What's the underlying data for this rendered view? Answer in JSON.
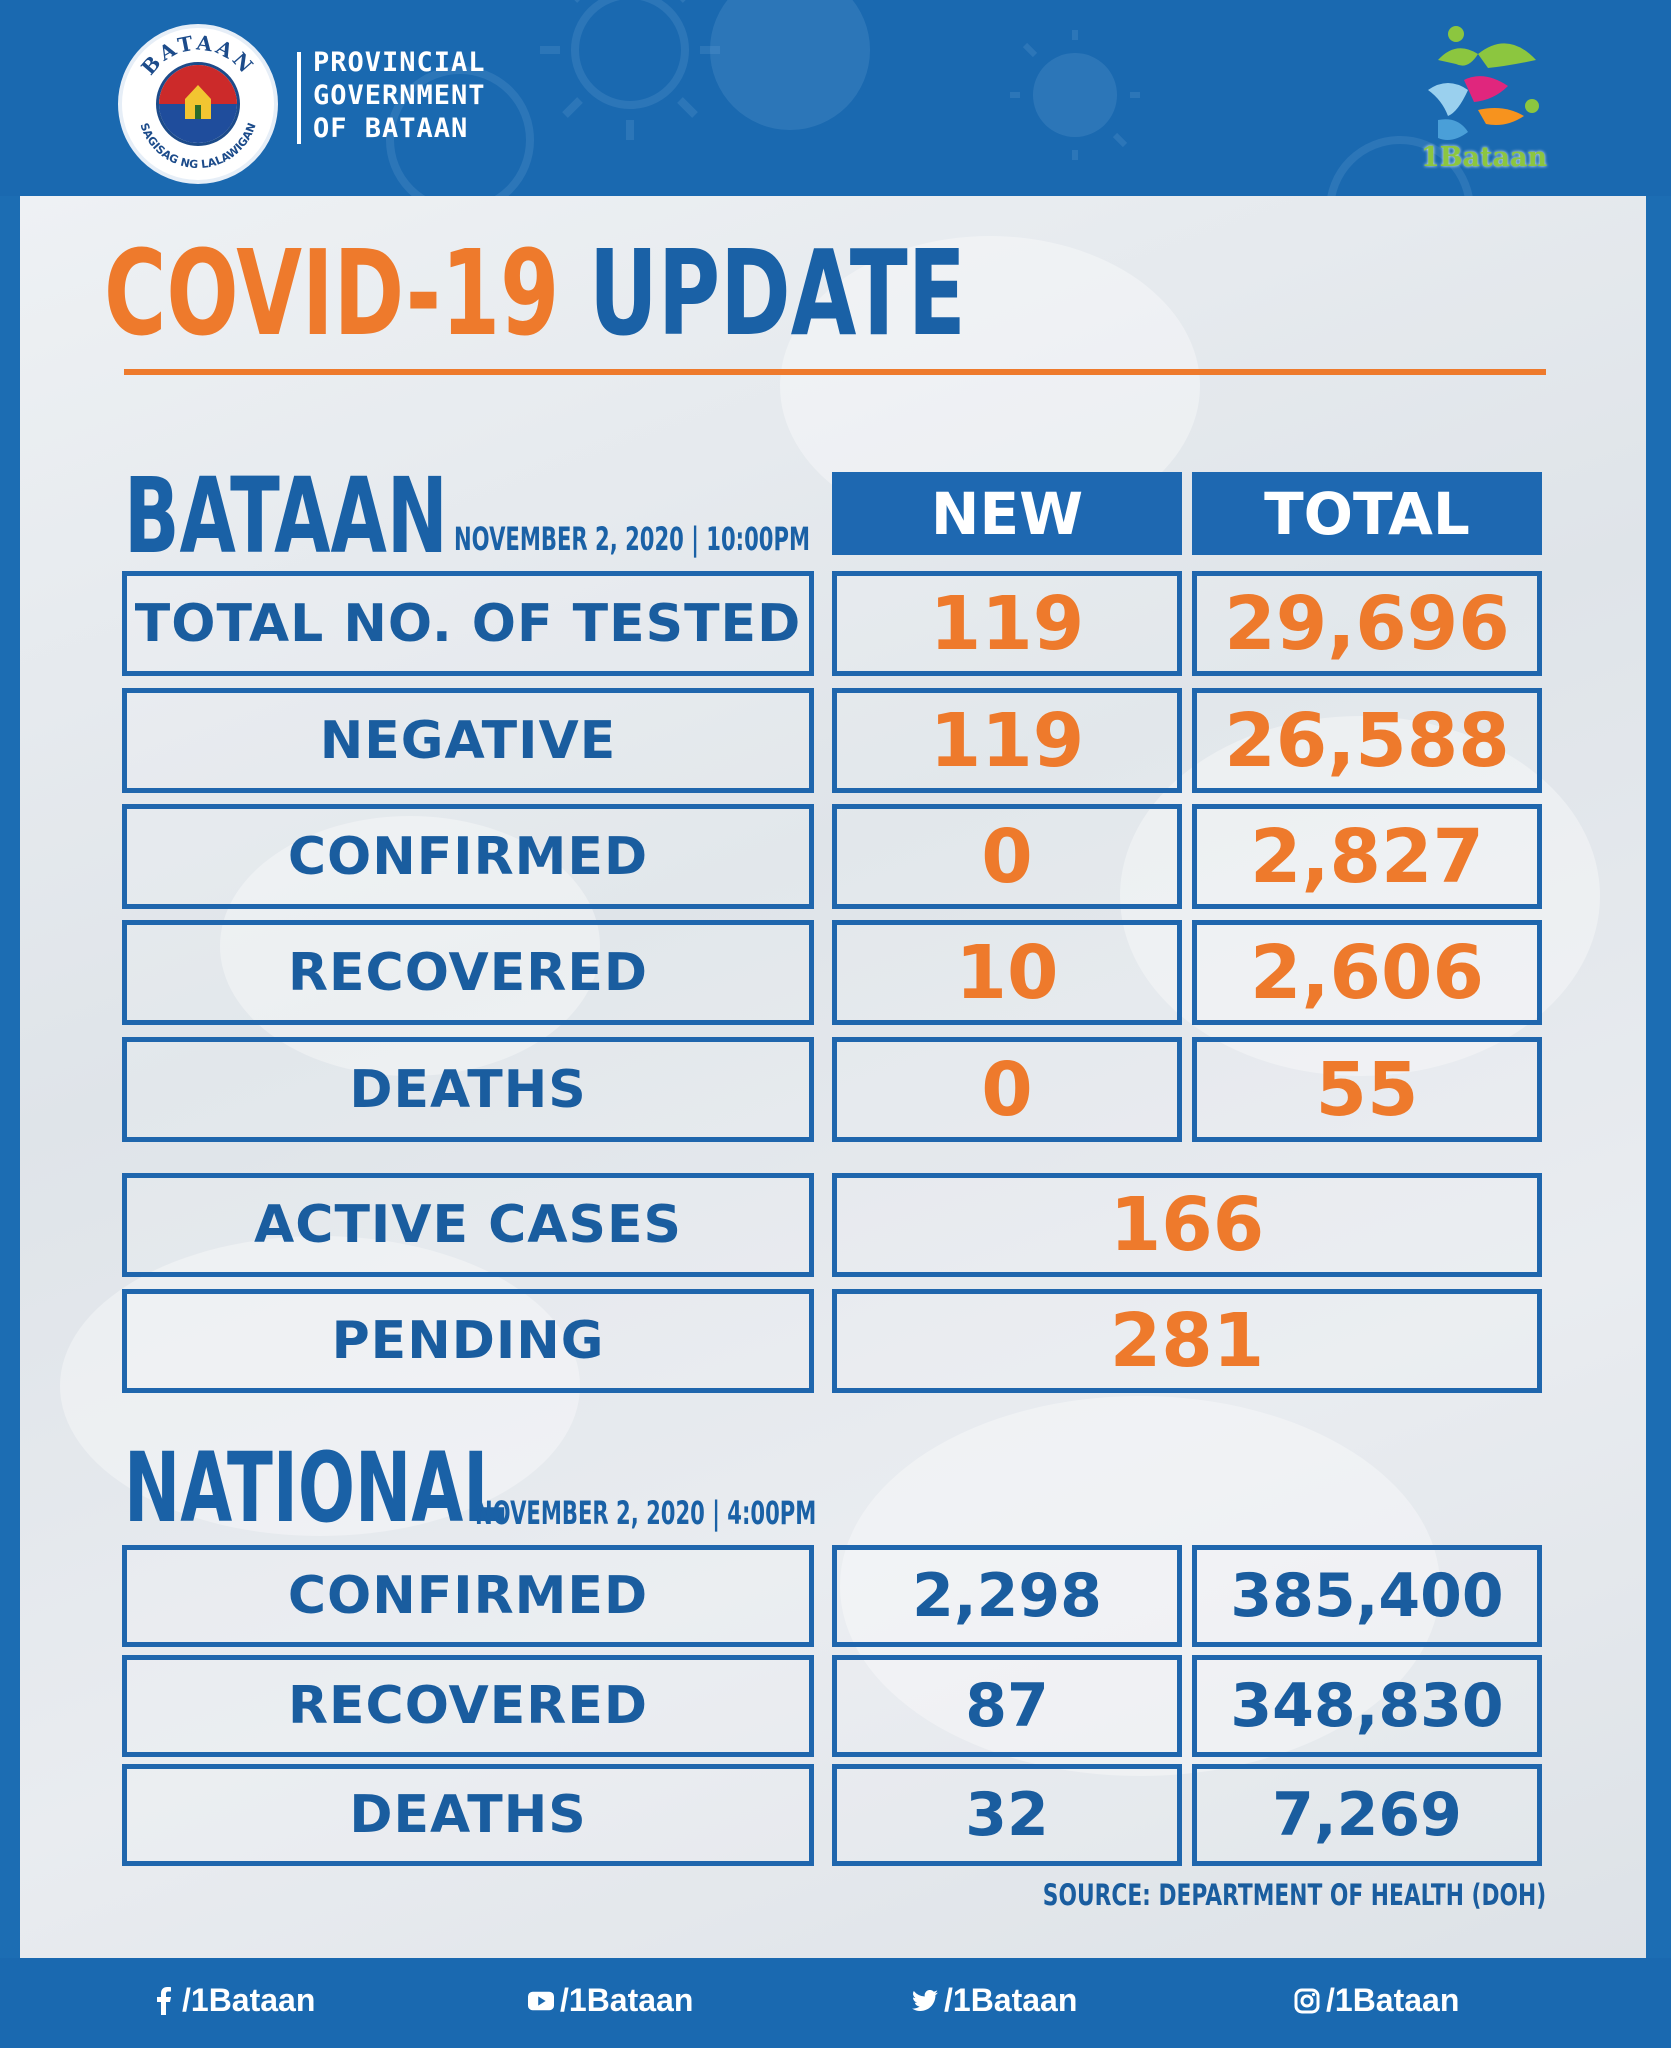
{
  "header": {
    "org_lines": [
      "PROVINCIAL",
      "GOVERNMENT",
      "OF BATAAN"
    ],
    "seal_ring_top": "BATAAN",
    "seal_ring_bottom": "SAGISAG NG LALAWIGAN",
    "brand_logo_text": "1Bataan"
  },
  "title": {
    "part1": "COVID-19",
    "part2": "UPDATE"
  },
  "bataan": {
    "heading": "BATAAN",
    "date": "NOVEMBER 2, 2020 | 10:00PM",
    "col_new": "NEW",
    "col_total": "TOTAL",
    "rows": [
      {
        "label": "TOTAL NO. OF TESTED",
        "new": "119",
        "total": "29,696"
      },
      {
        "label": "NEGATIVE",
        "new": "119",
        "total": "26,588"
      },
      {
        "label": "CONFIRMED",
        "new": "0",
        "total": "2,827"
      },
      {
        "label": "RECOVERED",
        "new": "10",
        "total": "2,606"
      },
      {
        "label": "DEATHS",
        "new": "0",
        "total": "55"
      }
    ],
    "active": {
      "label": "ACTIVE CASES",
      "value": "166"
    },
    "pending": {
      "label": "PENDING",
      "value": "281"
    }
  },
  "national": {
    "heading": "NATIONAL",
    "date": "NOVEMBER 2, 2020 | 4:00PM",
    "rows": [
      {
        "label": "CONFIRMED",
        "new": "2,298",
        "total": "385,400"
      },
      {
        "label": "RECOVERED",
        "new": "87",
        "total": "348,830"
      },
      {
        "label": "DEATHS",
        "new": "32",
        "total": "7,269"
      }
    ]
  },
  "source": "SOURCE: DEPARTMENT OF HEALTH (DOH)",
  "footer": {
    "facebook": "/1Bataan",
    "youtube": "/1Bataan",
    "twitter": "/1Bataan",
    "instagram": "/1Bataan"
  },
  "colors": {
    "accent_orange": "#ee7a2c",
    "brand_blue": "#1a61a6",
    "header_blue": "#1a69b0"
  }
}
